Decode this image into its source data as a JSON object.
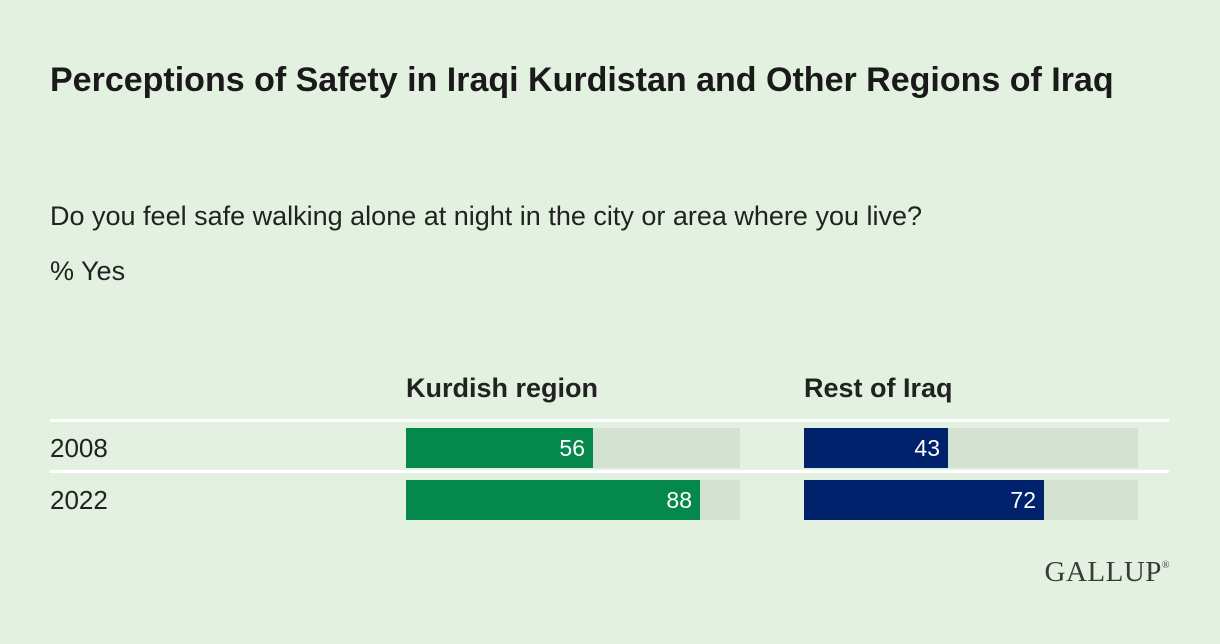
{
  "title": "Perceptions of Safety in Iraqi Kurdistan and Other Regions of Iraq",
  "subtitle": "Do you feel safe walking alone at night in the city or area where you live?",
  "unit_label": "% Yes",
  "logo": {
    "text": "GALLUP",
    "mark": "®"
  },
  "colors": {
    "kurdish_region": "#05884b",
    "rest_of_iraq": "#00216b",
    "track": "#d4e2d1",
    "background": "#e3f1e1"
  },
  "chart_data": {
    "type": "bar",
    "orientation": "horizontal",
    "title": "Perceptions of Safety in Iraqi Kurdistan and Other Regions of Iraq",
    "subtitle": "Do you feel safe walking alone at night in the city or area where you live?",
    "unit": "% Yes",
    "categories": [
      "2008",
      "2022"
    ],
    "series": [
      {
        "name": "Kurdish region",
        "values": [
          56,
          88
        ]
      },
      {
        "name": "Rest of Iraq",
        "values": [
          43,
          72
        ]
      }
    ],
    "xlim": [
      0,
      100
    ],
    "grid": false,
    "legend": "none"
  }
}
